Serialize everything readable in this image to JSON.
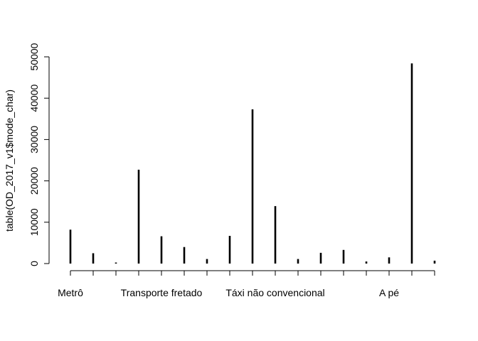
{
  "chart_data": {
    "type": "bar",
    "style": "histogram-lines",
    "ylabel": "table(OD_2017_v1$mode_char)",
    "xlabel": "",
    "ylim": [
      0,
      50000
    ],
    "yticks": [
      0,
      10000,
      20000,
      30000,
      40000,
      50000
    ],
    "x_tick_labels": [
      {
        "index": 0,
        "text": "Metrô"
      },
      {
        "index": 4,
        "text": "Transporte fretado"
      },
      {
        "index": 9,
        "text": "Táxi não convencional"
      },
      {
        "index": 14,
        "text": "A pé"
      }
    ],
    "values": [
      8200,
      2500,
      250,
      22700,
      6600,
      4000,
      1100,
      6700,
      37300,
      13900,
      1100,
      2600,
      3300,
      500,
      1500,
      48400,
      700
    ],
    "grid": false
  }
}
